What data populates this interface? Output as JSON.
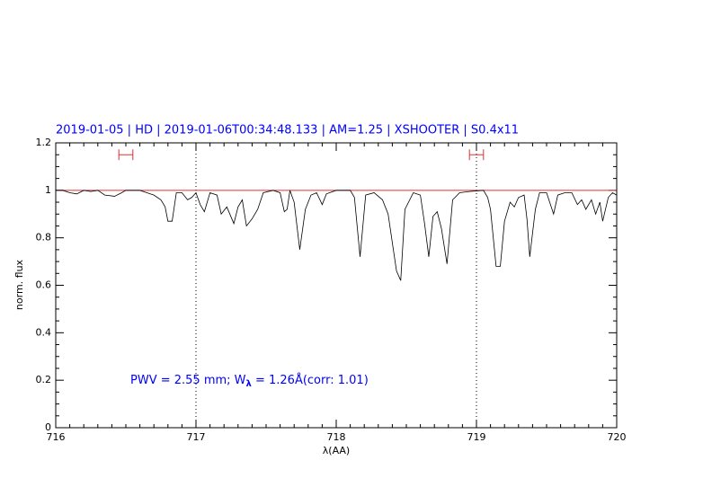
{
  "chart_data": {
    "type": "line",
    "title": "2019-01-05 | HD | 2019-01-06T00:34:48.133 | AM=1.25 | XSHOOTER | S0.4x11",
    "xlabel": "λ(AA)",
    "ylabel": "norm. flux",
    "annotation": {
      "before": "PWV = 2.55 mm; W",
      "subscript": "λ",
      "after": " = 1.26Å(corr: 1.01)"
    },
    "xlim": [
      716,
      720
    ],
    "ylim": [
      0,
      1.2
    ],
    "xticks": [
      716,
      717,
      718,
      719,
      720
    ],
    "yticks": [
      0,
      0.2,
      0.4,
      0.6,
      0.8,
      1,
      1.2
    ],
    "vlines": [
      717,
      719
    ],
    "hline": {
      "value": 1,
      "color": "#e03030"
    },
    "markers": {
      "color": "#e03030",
      "y": 1.15,
      "ranges": [
        [
          716.45,
          716.55
        ],
        [
          718.95,
          719.05
        ]
      ]
    },
    "series": [
      {
        "name": "spectrum",
        "color": "#000000",
        "x": [
          716.0,
          716.05,
          716.1,
          716.15,
          716.2,
          716.25,
          716.3,
          716.35,
          716.42,
          716.47,
          716.5,
          716.6,
          716.65,
          716.7,
          716.75,
          716.78,
          716.8,
          716.83,
          716.86,
          716.9,
          716.94,
          716.97,
          717.0,
          717.03,
          717.06,
          717.1,
          717.15,
          717.18,
          717.22,
          717.27,
          717.3,
          717.33,
          717.36,
          717.4,
          717.44,
          717.48,
          717.55,
          717.6,
          717.63,
          717.65,
          717.67,
          717.7,
          717.74,
          717.78,
          717.82,
          717.86,
          717.9,
          717.93,
          718.0,
          718.1,
          718.13,
          718.17,
          718.21,
          718.27,
          718.33,
          718.37,
          718.43,
          718.46,
          718.49,
          718.55,
          718.6,
          718.63,
          718.66,
          718.69,
          718.72,
          718.75,
          718.79,
          718.83,
          718.88,
          718.95,
          719.05,
          719.08,
          719.1,
          719.14,
          719.17,
          719.2,
          719.24,
          719.27,
          719.3,
          719.34,
          719.36,
          719.38,
          719.42,
          719.45,
          719.5,
          719.55,
          719.58,
          719.63,
          719.68,
          719.72,
          719.75,
          719.78,
          719.82,
          719.85,
          719.88,
          719.9,
          719.94,
          719.97,
          720.0
        ],
        "values": [
          1.0,
          1.0,
          0.99,
          0.985,
          1.0,
          0.995,
          1.0,
          0.98,
          0.975,
          0.99,
          1.0,
          1.0,
          0.99,
          0.98,
          0.96,
          0.93,
          0.87,
          0.87,
          0.99,
          0.99,
          0.96,
          0.97,
          0.99,
          0.94,
          0.91,
          0.99,
          0.98,
          0.9,
          0.93,
          0.86,
          0.93,
          0.96,
          0.85,
          0.88,
          0.92,
          0.99,
          1.0,
          0.99,
          0.91,
          0.92,
          1.0,
          0.95,
          0.75,
          0.92,
          0.98,
          0.99,
          0.94,
          0.985,
          1.0,
          1.0,
          0.97,
          0.72,
          0.98,
          0.99,
          0.96,
          0.9,
          0.66,
          0.62,
          0.92,
          0.99,
          0.98,
          0.86,
          0.72,
          0.89,
          0.91,
          0.84,
          0.69,
          0.96,
          0.99,
          0.995,
          1.0,
          0.97,
          0.92,
          0.68,
          0.68,
          0.87,
          0.95,
          0.93,
          0.97,
          0.98,
          0.88,
          0.72,
          0.92,
          0.99,
          0.99,
          0.9,
          0.98,
          0.99,
          0.99,
          0.94,
          0.96,
          0.92,
          0.96,
          0.9,
          0.95,
          0.87,
          0.97,
          0.99,
          0.98
        ]
      }
    ]
  }
}
